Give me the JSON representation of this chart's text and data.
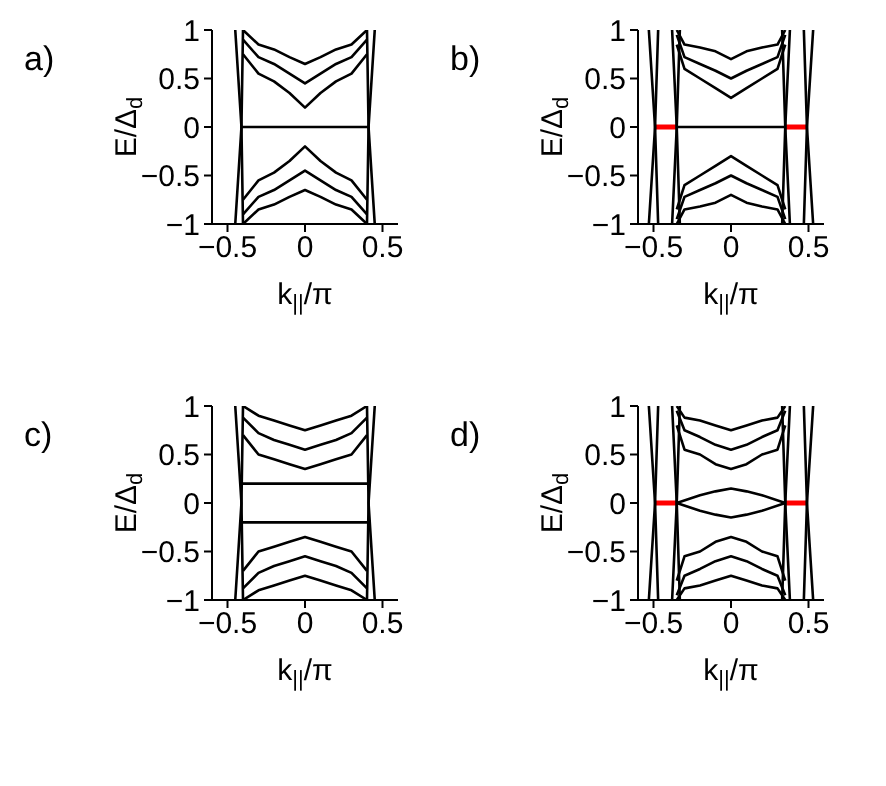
{
  "chart_data": [
    {
      "type": "line",
      "title": "a)",
      "xlabel": "k$_{||}$/π",
      "ylabel": "E/Δ$_{d}$",
      "xlim": [
        -0.6,
        0.6
      ],
      "xticks": [
        -0.5,
        0,
        0.5
      ],
      "ylim": [
        -1,
        1
      ],
      "yticks": [
        -1,
        -0.5,
        0,
        0.5,
        1
      ],
      "marker": "none",
      "series": [
        {
          "color": "#000000",
          "x": [
            -0.41,
            0.41
          ],
          "values": [
            0,
            0
          ]
        },
        {
          "color": "#000000",
          "x": [
            -0.4,
            -0.3,
            -0.2,
            -0.1,
            0,
            0.1,
            0.2,
            0.3,
            0.4
          ],
          "values": [
            0.75,
            0.55,
            0.47,
            0.35,
            0.2,
            0.35,
            0.47,
            0.55,
            0.75
          ]
        },
        {
          "color": "#000000",
          "x": [
            -0.4,
            -0.3,
            -0.2,
            -0.1,
            0,
            0.1,
            0.2,
            0.3,
            0.4
          ],
          "values": [
            0.9,
            0.72,
            0.65,
            0.55,
            0.45,
            0.55,
            0.65,
            0.72,
            0.9
          ]
        },
        {
          "color": "#000000",
          "x": [
            -0.4,
            -0.3,
            -0.2,
            -0.1,
            0,
            0.1,
            0.2,
            0.3,
            0.4
          ],
          "values": [
            1,
            0.85,
            0.8,
            0.72,
            0.65,
            0.72,
            0.8,
            0.85,
            1
          ]
        },
        {
          "color": "#000000",
          "x": [
            -0.4,
            -0.3,
            -0.2,
            -0.1,
            0,
            0.1,
            0.2,
            0.3,
            0.4
          ],
          "values": [
            -0.75,
            -0.55,
            -0.47,
            -0.35,
            -0.2,
            -0.35,
            -0.47,
            -0.55,
            -0.75
          ]
        },
        {
          "color": "#000000",
          "x": [
            -0.4,
            -0.3,
            -0.2,
            -0.1,
            0,
            0.1,
            0.2,
            0.3,
            0.4
          ],
          "values": [
            -0.9,
            -0.72,
            -0.65,
            -0.55,
            -0.45,
            -0.55,
            -0.65,
            -0.72,
            -0.9
          ]
        },
        {
          "color": "#000000",
          "x": [
            -0.4,
            -0.3,
            -0.2,
            -0.1,
            0,
            0.1,
            0.2,
            0.3,
            0.4
          ],
          "values": [
            -1,
            -0.85,
            -0.8,
            -0.72,
            -0.65,
            -0.72,
            -0.8,
            -0.85,
            -1
          ]
        },
        {
          "color": "#000000",
          "x": [
            -0.45,
            -0.41,
            -0.45
          ],
          "values": [
            1,
            0,
            -1
          ]
        },
        {
          "color": "#000000",
          "x": [
            -0.4,
            -0.41,
            -0.4
          ],
          "values": [
            1,
            0,
            -1
          ]
        },
        {
          "color": "#000000",
          "x": [
            0.45,
            0.41,
            0.45
          ],
          "values": [
            1,
            0,
            -1
          ]
        },
        {
          "color": "#000000",
          "x": [
            0.4,
            0.41,
            0.4
          ],
          "values": [
            1,
            0,
            -1
          ]
        }
      ]
    },
    {
      "type": "line",
      "title": "b)",
      "xlabel": "k$_{||}$/π",
      "ylabel": "E/Δ$_{d}$",
      "xlim": [
        -0.6,
        0.6
      ],
      "xticks": [
        -0.5,
        0,
        0.5
      ],
      "ylim": [
        -1,
        1
      ],
      "yticks": [
        -1,
        -0.5,
        0,
        0.5,
        1
      ],
      "marker": "none",
      "series": [
        {
          "color": "#000000",
          "x": [
            -0.35,
            0.35
          ],
          "values": [
            0,
            0
          ]
        },
        {
          "color": "#ff0000",
          "x": [
            -0.49,
            -0.35
          ],
          "values": [
            0,
            0
          ]
        },
        {
          "color": "#ff0000",
          "x": [
            0.35,
            0.49
          ],
          "values": [
            0,
            0
          ]
        },
        {
          "color": "#000000",
          "x": [
            -0.35,
            -0.3,
            -0.2,
            -0.1,
            0,
            0.1,
            0.2,
            0.3,
            0.35
          ],
          "values": [
            0.85,
            0.6,
            0.5,
            0.4,
            0.3,
            0.4,
            0.5,
            0.6,
            0.85
          ]
        },
        {
          "color": "#000000",
          "x": [
            -0.35,
            -0.3,
            -0.2,
            -0.1,
            0,
            0.1,
            0.2,
            0.3,
            0.35
          ],
          "values": [
            0.95,
            0.72,
            0.65,
            0.58,
            0.5,
            0.58,
            0.65,
            0.72,
            0.95
          ]
        },
        {
          "color": "#000000",
          "x": [
            -0.35,
            -0.3,
            -0.2,
            -0.1,
            0,
            0.1,
            0.2,
            0.3,
            0.35
          ],
          "values": [
            1,
            0.85,
            0.82,
            0.78,
            0.7,
            0.78,
            0.82,
            0.85,
            1
          ]
        },
        {
          "color": "#000000",
          "x": [
            -0.35,
            -0.3,
            -0.2,
            -0.1,
            0,
            0.1,
            0.2,
            0.3,
            0.35
          ],
          "values": [
            -0.85,
            -0.6,
            -0.5,
            -0.4,
            -0.3,
            -0.4,
            -0.5,
            -0.6,
            -0.85
          ]
        },
        {
          "color": "#000000",
          "x": [
            -0.35,
            -0.3,
            -0.2,
            -0.1,
            0,
            0.1,
            0.2,
            0.3,
            0.35
          ],
          "values": [
            -0.95,
            -0.72,
            -0.65,
            -0.58,
            -0.5,
            -0.58,
            -0.65,
            -0.72,
            -0.95
          ]
        },
        {
          "color": "#000000",
          "x": [
            -0.35,
            -0.3,
            -0.2,
            -0.1,
            0,
            0.1,
            0.2,
            0.3,
            0.35
          ],
          "values": [
            -1,
            -0.85,
            -0.82,
            -0.78,
            -0.7,
            -0.78,
            -0.82,
            -0.85,
            -1
          ]
        },
        {
          "color": "#000000",
          "x": [
            -0.53,
            -0.49,
            -0.53
          ],
          "values": [
            1,
            0,
            -1
          ]
        },
        {
          "color": "#000000",
          "x": [
            -0.47,
            -0.49,
            -0.47
          ],
          "values": [
            1,
            0,
            -1
          ]
        },
        {
          "color": "#000000",
          "x": [
            -0.38,
            -0.35,
            -0.38
          ],
          "values": [
            1,
            0,
            -1
          ]
        },
        {
          "color": "#000000",
          "x": [
            -0.33,
            -0.35,
            -0.33
          ],
          "values": [
            1,
            0,
            -1
          ]
        },
        {
          "color": "#000000",
          "x": [
            0.53,
            0.49,
            0.53
          ],
          "values": [
            1,
            0,
            -1
          ]
        },
        {
          "color": "#000000",
          "x": [
            0.47,
            0.49,
            0.47
          ],
          "values": [
            1,
            0,
            -1
          ]
        },
        {
          "color": "#000000",
          "x": [
            0.38,
            0.35,
            0.38
          ],
          "values": [
            1,
            0,
            -1
          ]
        },
        {
          "color": "#000000",
          "x": [
            0.33,
            0.35,
            0.33
          ],
          "values": [
            1,
            0,
            -1
          ]
        }
      ]
    },
    {
      "type": "line",
      "title": "c)",
      "xlabel": "k$_{||}$/π",
      "ylabel": "E/Δ$_{d}$",
      "xlim": [
        -0.6,
        0.6
      ],
      "xticks": [
        -0.5,
        0,
        0.5
      ],
      "ylim": [
        -1,
        1
      ],
      "yticks": [
        -1,
        -0.5,
        0,
        0.5,
        1
      ],
      "marker": "none",
      "series": [
        {
          "color": "#000000",
          "x": [
            -0.4,
            0.4
          ],
          "values": [
            0.2,
            0.2
          ]
        },
        {
          "color": "#000000",
          "x": [
            -0.4,
            0.4
          ],
          "values": [
            -0.2,
            -0.2
          ]
        },
        {
          "color": "#000000",
          "x": [
            -0.4,
            -0.3,
            -0.2,
            -0.1,
            0,
            0.1,
            0.2,
            0.3,
            0.4
          ],
          "values": [
            0.7,
            0.5,
            0.45,
            0.4,
            0.35,
            0.4,
            0.45,
            0.5,
            0.7
          ]
        },
        {
          "color": "#000000",
          "x": [
            -0.4,
            -0.3,
            -0.2,
            -0.1,
            0,
            0.1,
            0.2,
            0.3,
            0.4
          ],
          "values": [
            0.88,
            0.72,
            0.65,
            0.6,
            0.55,
            0.6,
            0.65,
            0.72,
            0.88
          ]
        },
        {
          "color": "#000000",
          "x": [
            -0.4,
            -0.3,
            -0.2,
            -0.1,
            0,
            0.1,
            0.2,
            0.3,
            0.4
          ],
          "values": [
            1,
            0.9,
            0.85,
            0.8,
            0.75,
            0.8,
            0.85,
            0.9,
            1
          ]
        },
        {
          "color": "#000000",
          "x": [
            -0.4,
            -0.3,
            -0.2,
            -0.1,
            0,
            0.1,
            0.2,
            0.3,
            0.4
          ],
          "values": [
            -0.7,
            -0.5,
            -0.45,
            -0.4,
            -0.35,
            -0.4,
            -0.45,
            -0.5,
            -0.7
          ]
        },
        {
          "color": "#000000",
          "x": [
            -0.4,
            -0.3,
            -0.2,
            -0.1,
            0,
            0.1,
            0.2,
            0.3,
            0.4
          ],
          "values": [
            -0.88,
            -0.72,
            -0.65,
            -0.6,
            -0.55,
            -0.6,
            -0.65,
            -0.72,
            -0.88
          ]
        },
        {
          "color": "#000000",
          "x": [
            -0.4,
            -0.3,
            -0.2,
            -0.1,
            0,
            0.1,
            0.2,
            0.3,
            0.4
          ],
          "values": [
            -1,
            -0.9,
            -0.85,
            -0.8,
            -0.75,
            -0.8,
            -0.85,
            -0.9,
            -1
          ]
        },
        {
          "color": "#000000",
          "x": [
            -0.45,
            -0.41,
            -0.45
          ],
          "values": [
            1,
            0,
            -1
          ]
        },
        {
          "color": "#000000",
          "x": [
            -0.4,
            -0.41,
            -0.4
          ],
          "values": [
            1,
            0,
            -1
          ]
        },
        {
          "color": "#000000",
          "x": [
            0.45,
            0.41,
            0.45
          ],
          "values": [
            1,
            0,
            -1
          ]
        },
        {
          "color": "#000000",
          "x": [
            0.4,
            0.41,
            0.4
          ],
          "values": [
            1,
            0,
            -1
          ]
        }
      ]
    },
    {
      "type": "line",
      "title": "d)",
      "xlabel": "k$_{||}$/π",
      "ylabel": "E/Δ$_{d}$",
      "xlim": [
        -0.6,
        0.6
      ],
      "xticks": [
        -0.5,
        0,
        0.5
      ],
      "ylim": [
        -1,
        1
      ],
      "yticks": [
        -1,
        -0.5,
        0,
        0.5,
        1
      ],
      "marker": "none",
      "series": [
        {
          "color": "#ff0000",
          "x": [
            -0.49,
            -0.35
          ],
          "values": [
            0,
            0
          ]
        },
        {
          "color": "#ff0000",
          "x": [
            0.35,
            0.49
          ],
          "values": [
            0,
            0
          ]
        },
        {
          "color": "#000000",
          "x": [
            -0.35,
            -0.2,
            -0.1,
            0,
            0.1,
            0.2,
            0.35
          ],
          "values": [
            0,
            0.08,
            0.12,
            0.15,
            0.12,
            0.08,
            0
          ]
        },
        {
          "color": "#000000",
          "x": [
            -0.35,
            -0.2,
            -0.1,
            0,
            0.1,
            0.2,
            0.35
          ],
          "values": [
            0,
            -0.08,
            -0.12,
            -0.15,
            -0.12,
            -0.08,
            0
          ]
        },
        {
          "color": "#000000",
          "x": [
            -0.35,
            -0.3,
            -0.2,
            -0.1,
            0,
            0.1,
            0.2,
            0.3,
            0.35
          ],
          "values": [
            0.8,
            0.55,
            0.5,
            0.4,
            0.35,
            0.4,
            0.5,
            0.55,
            0.8
          ]
        },
        {
          "color": "#000000",
          "x": [
            -0.35,
            -0.3,
            -0.2,
            -0.1,
            0,
            0.1,
            0.2,
            0.3,
            0.35
          ],
          "values": [
            0.95,
            0.75,
            0.68,
            0.6,
            0.55,
            0.6,
            0.68,
            0.75,
            0.95
          ]
        },
        {
          "color": "#000000",
          "x": [
            -0.35,
            -0.3,
            -0.2,
            -0.1,
            0,
            0.1,
            0.2,
            0.3,
            0.35
          ],
          "values": [
            1,
            0.88,
            0.85,
            0.8,
            0.75,
            0.8,
            0.85,
            0.88,
            1
          ]
        },
        {
          "color": "#000000",
          "x": [
            -0.35,
            -0.3,
            -0.2,
            -0.1,
            0,
            0.1,
            0.2,
            0.3,
            0.35
          ],
          "values": [
            -0.8,
            -0.55,
            -0.5,
            -0.4,
            -0.35,
            -0.4,
            -0.5,
            -0.55,
            -0.8
          ]
        },
        {
          "color": "#000000",
          "x": [
            -0.35,
            -0.3,
            -0.2,
            -0.1,
            0,
            0.1,
            0.2,
            0.3,
            0.35
          ],
          "values": [
            -0.95,
            -0.75,
            -0.68,
            -0.6,
            -0.55,
            -0.6,
            -0.68,
            -0.75,
            -0.95
          ]
        },
        {
          "color": "#000000",
          "x": [
            -0.35,
            -0.3,
            -0.2,
            -0.1,
            0,
            0.1,
            0.2,
            0.3,
            0.35
          ],
          "values": [
            -1,
            -0.88,
            -0.85,
            -0.8,
            -0.75,
            -0.8,
            -0.85,
            -0.88,
            -1
          ]
        },
        {
          "color": "#000000",
          "x": [
            -0.53,
            -0.49,
            -0.53
          ],
          "values": [
            1,
            0,
            -1
          ]
        },
        {
          "color": "#000000",
          "x": [
            -0.47,
            -0.49,
            -0.47
          ],
          "values": [
            1,
            0,
            -1
          ]
        },
        {
          "color": "#000000",
          "x": [
            -0.38,
            -0.35,
            -0.38
          ],
          "values": [
            1,
            0,
            -1
          ]
        },
        {
          "color": "#000000",
          "x": [
            -0.33,
            -0.35,
            -0.33
          ],
          "values": [
            1,
            0,
            -1
          ]
        },
        {
          "color": "#000000",
          "x": [
            0.53,
            0.49,
            0.53
          ],
          "values": [
            1,
            0,
            -1
          ]
        },
        {
          "color": "#000000",
          "x": [
            0.47,
            0.49,
            0.47
          ],
          "values": [
            1,
            0,
            -1
          ]
        },
        {
          "color": "#000000",
          "x": [
            0.38,
            0.35,
            0.38
          ],
          "values": [
            1,
            0,
            -1
          ]
        },
        {
          "color": "#000000",
          "x": [
            0.33,
            0.35,
            0.33
          ],
          "values": [
            1,
            0,
            -1
          ]
        }
      ]
    }
  ]
}
